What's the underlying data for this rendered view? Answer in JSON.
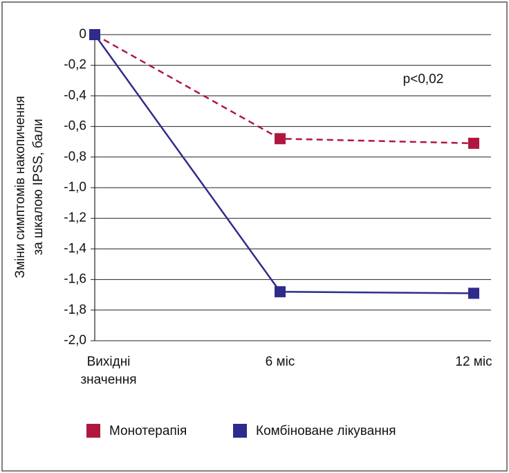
{
  "chart_data": {
    "type": "line",
    "y_label": [
      "Зміни симптомів накопичення",
      "за шкалою IPSS, бали"
    ],
    "annotation": "p<0,02",
    "categories": [
      "Вихідні значення",
      "6 міс",
      "12 міс"
    ],
    "series": [
      {
        "name": "Монотерапія",
        "color": "#b0173f",
        "line_style": "dashed",
        "values": [
          0,
          -0.68,
          -0.71
        ]
      },
      {
        "name": "Комбіноване лікування",
        "color": "#2e2b8c",
        "line_style": "solid",
        "values": [
          0,
          -1.68,
          -1.69
        ]
      }
    ],
    "ylim": [
      -2.0,
      0
    ],
    "yticks": [
      {
        "value": -2.0,
        "label": "-2,0"
      },
      {
        "value": -1.8,
        "label": "-1,8"
      },
      {
        "value": -1.6,
        "label": "-1,6"
      },
      {
        "value": -1.4,
        "label": "-1,4"
      },
      {
        "value": -1.2,
        "label": "-1,2"
      },
      {
        "value": -1.0,
        "label": "-1,0"
      },
      {
        "value": -0.8,
        "label": "-0,8"
      },
      {
        "value": -0.6,
        "label": "-0,6"
      },
      {
        "value": -0.4,
        "label": "-0,4"
      },
      {
        "value": -0.2,
        "label": "-0,2"
      },
      0
    ],
    "grid": true
  }
}
